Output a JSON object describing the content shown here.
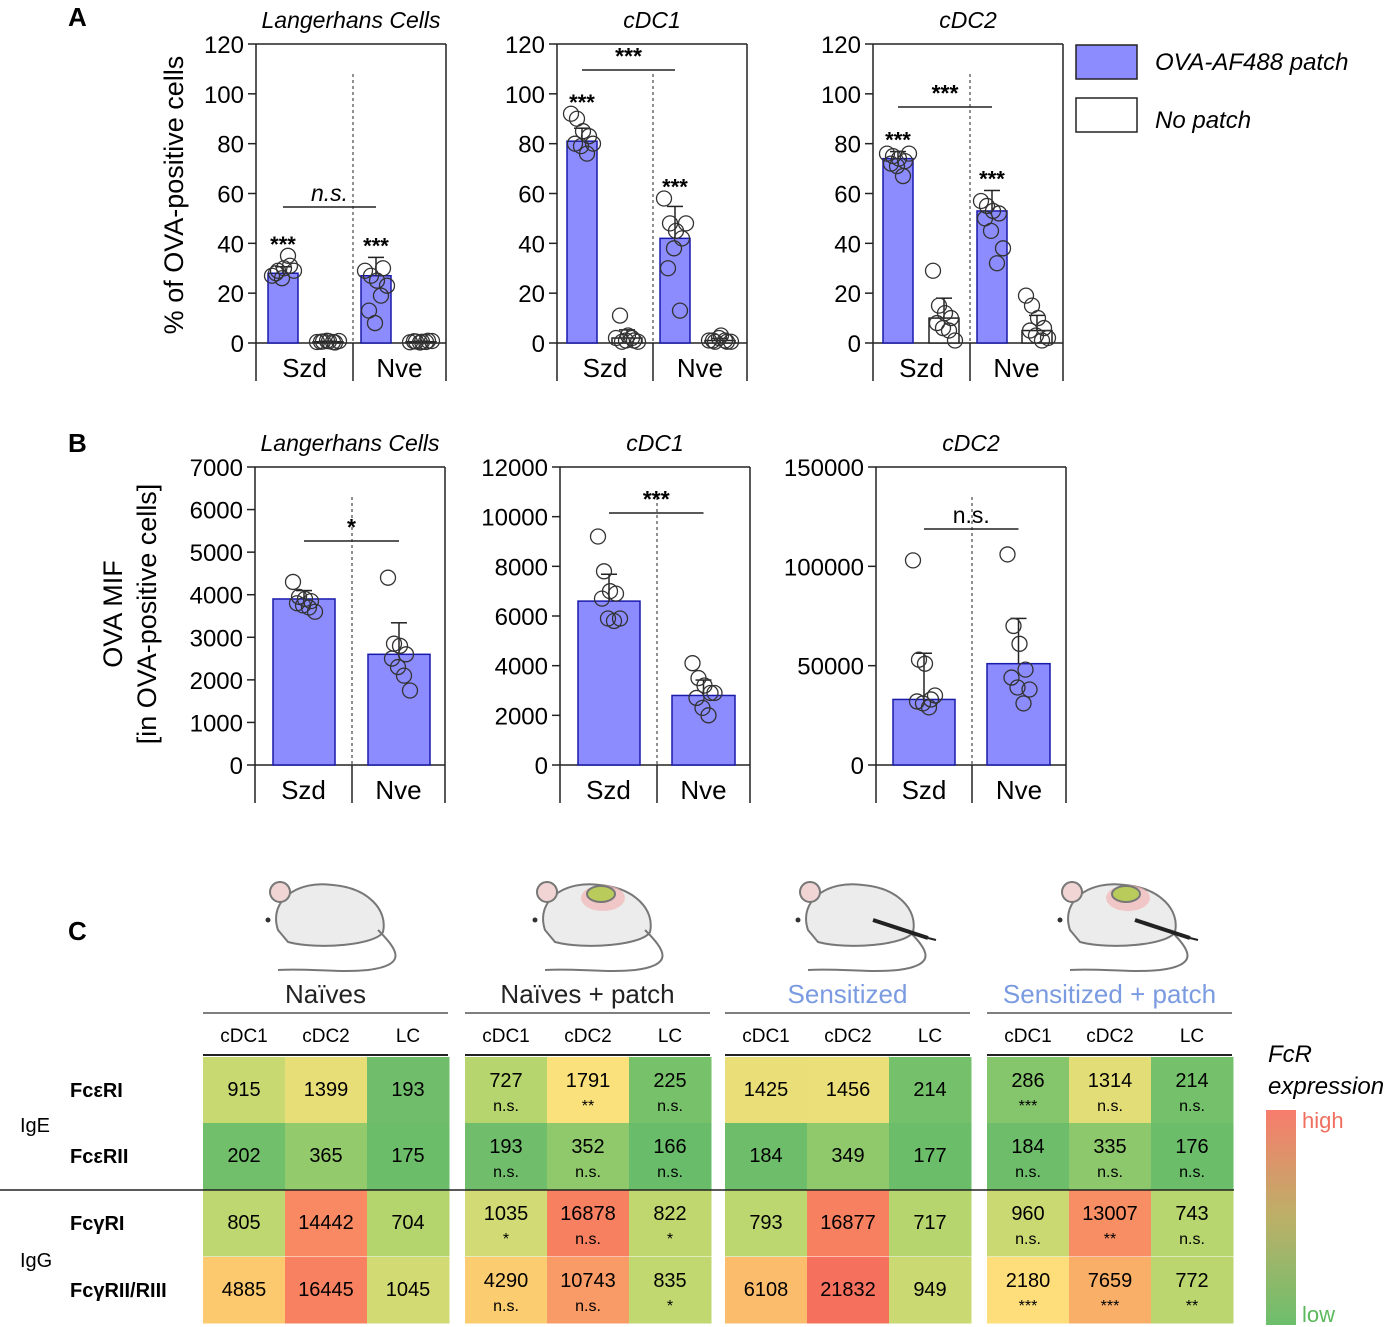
{
  "legend": {
    "patch": "OVA-AF488 patch",
    "nopatch": "No patch"
  },
  "colors": {
    "bar": "#8c8cff",
    "barStroke": "#1a1aaa"
  },
  "chart_data": [
    {
      "type": "bar",
      "panel": "A",
      "title": "Langerhans Cells",
      "ylabel": "% of OVA-positive cells",
      "ylim": [
        0,
        120
      ],
      "yticks": [
        "0",
        "20",
        "40",
        "60",
        "80",
        "100",
        "120"
      ],
      "groups": [
        "Szd",
        "Nve"
      ],
      "series": [
        {
          "name": "OVA-AF488 patch",
          "values": [
            28,
            27
          ]
        },
        {
          "name": "No patch",
          "values": [
            0.5,
            0.5
          ]
        }
      ],
      "sig": {
        "between": "n.s.",
        "bars": [
          "***",
          "",
          "***",
          ""
        ]
      },
      "points": [
        [
          27,
          29,
          30,
          31,
          28,
          26,
          35,
          29
        ],
        [
          0.4,
          0.6,
          0.7,
          0.2,
          0.5,
          0.9,
          0.4,
          0.8
        ],
        [
          29,
          27,
          25,
          30,
          13,
          8,
          19,
          23
        ],
        [
          0.3,
          0.6,
          0.5,
          0.9,
          0.7,
          0.2,
          0.4,
          0.8
        ]
      ]
    },
    {
      "type": "bar",
      "panel": "A",
      "title": "cDC1",
      "ylabel": "",
      "ylim": [
        0,
        120
      ],
      "yticks": [
        "0",
        "20",
        "40",
        "60",
        "80",
        "100",
        "120"
      ],
      "groups": [
        "Szd",
        "Nve"
      ],
      "series": [
        {
          "name": "OVA-AF488 patch",
          "values": [
            81,
            42
          ]
        },
        {
          "name": "No patch",
          "values": [
            2,
            1
          ]
        }
      ],
      "sig": {
        "between": "***",
        "bars": [
          "***",
          "",
          "***",
          ""
        ]
      },
      "points": [
        [
          92,
          90,
          85,
          83,
          80,
          79,
          76,
          80
        ],
        [
          2,
          0.5,
          3,
          1,
          11,
          1,
          2,
          0.5
        ],
        [
          58,
          48,
          45,
          42,
          30,
          38,
          13,
          48
        ],
        [
          1,
          0.5,
          3,
          0.5,
          1,
          2,
          1,
          0.5
        ]
      ]
    },
    {
      "type": "bar",
      "panel": "A",
      "title": "cDC2",
      "ylabel": "",
      "ylim": [
        0,
        120
      ],
      "yticks": [
        "0",
        "20",
        "40",
        "60",
        "80",
        "100",
        "120"
      ],
      "groups": [
        "Szd",
        "Nve"
      ],
      "series": [
        {
          "name": "OVA-AF488 patch",
          "values": [
            74,
            53
          ]
        },
        {
          "name": "No patch",
          "values": [
            10,
            5
          ]
        }
      ],
      "sig": {
        "between": "***",
        "bars": [
          "***",
          "",
          "***",
          ""
        ]
      },
      "points": [
        [
          76,
          75,
          74,
          73,
          72,
          71,
          67,
          76
        ],
        [
          29,
          15,
          12,
          10,
          8,
          6,
          5,
          1
        ],
        [
          57,
          55,
          53,
          52,
          50,
          45,
          32,
          38
        ],
        [
          19,
          15,
          10,
          6,
          5,
          3,
          1,
          2
        ]
      ]
    },
    {
      "type": "bar",
      "panel": "B",
      "title": "Langerhans Cells",
      "ylabel": "OVA MIF",
      "ylabel2": "[in OVA-positive cells]",
      "ylim": [
        0,
        7000
      ],
      "yticks": [
        "0",
        "1000",
        "2000",
        "3000",
        "4000",
        "5000",
        "6000",
        "7000"
      ],
      "groups": [
        "Szd",
        "Nve"
      ],
      "values": [
        3900,
        2600
      ],
      "sig": {
        "between": "*"
      },
      "points": [
        [
          4300,
          3950,
          3900,
          3850,
          3800,
          3750,
          3700,
          3600
        ],
        [
          4400,
          2850,
          2800,
          2600,
          2500,
          2300,
          2100,
          1750
        ]
      ]
    },
    {
      "type": "bar",
      "panel": "B",
      "title": "cDC1",
      "ylabel": "",
      "ylim": [
        0,
        12000
      ],
      "yticks": [
        "0",
        "2000",
        "4000",
        "6000",
        "8000",
        "10000",
        "12000"
      ],
      "groups": [
        "Szd",
        "Nve"
      ],
      "values": [
        6600,
        2800
      ],
      "sig": {
        "between": "***"
      },
      "points": [
        [
          9200,
          7800,
          7000,
          6900,
          6700,
          5900,
          5800,
          5900
        ],
        [
          4100,
          3500,
          3200,
          2900,
          2700,
          2300,
          2000,
          2900
        ]
      ]
    },
    {
      "type": "bar",
      "panel": "B",
      "title": "cDC2",
      "ylabel": "",
      "ylim": [
        0,
        150000
      ],
      "yticks": [
        "0",
        "50000",
        "100000",
        "150000"
      ],
      "groups": [
        "Szd",
        "Nve"
      ],
      "values": [
        33000,
        51000
      ],
      "sig": {
        "between": "n.s."
      },
      "points": [
        [
          103000,
          53000,
          51000,
          33000,
          32000,
          31000,
          29000,
          35000
        ],
        [
          106000,
          70000,
          61000,
          48000,
          44000,
          39000,
          31000,
          38000
        ]
      ]
    }
  ],
  "panelC": {
    "groups": [
      "Naïves",
      "Naïves + patch",
      "Sensitized",
      "Sensitized + patch"
    ],
    "cols": [
      "cDC1",
      "cDC2",
      "LC"
    ],
    "rows": [
      "FcεRI",
      "FcεRII",
      "FcγRI",
      "FcγRII/RIII"
    ],
    "classes": [
      "IgE",
      "IgG"
    ],
    "values": [
      [
        [
          915,
          1399,
          193
        ],
        [
          202,
          365,
          175
        ],
        [
          805,
          14442,
          704
        ],
        [
          4885,
          16445,
          1045
        ]
      ],
      [
        [
          727,
          1791,
          225
        ],
        [
          193,
          352,
          166
        ],
        [
          1035,
          16878,
          822
        ],
        [
          4290,
          10743,
          835
        ]
      ],
      [
        [
          1425,
          1456,
          214
        ],
        [
          184,
          349,
          177
        ],
        [
          793,
          16877,
          717
        ],
        [
          6108,
          21832,
          949
        ]
      ],
      [
        [
          286,
          1314,
          214
        ],
        [
          184,
          335,
          176
        ],
        [
          960,
          13007,
          743
        ],
        [
          2180,
          7659,
          772
        ]
      ]
    ],
    "sig": [
      null,
      [
        [
          "n.s.",
          "**",
          "n.s."
        ],
        [
          "n.s.",
          "n.s.",
          "n.s."
        ],
        [
          "*",
          "n.s.",
          "*"
        ],
        [
          "n.s.",
          "n.s.",
          "*"
        ]
      ],
      null,
      [
        [
          "***",
          "n.s.",
          "n.s."
        ],
        [
          "n.s.",
          "n.s.",
          "n.s."
        ],
        [
          "n.s.",
          "**",
          "n.s."
        ],
        [
          "***",
          "***",
          "**"
        ]
      ]
    ],
    "scale": {
      "title": [
        "FcR",
        "expression"
      ],
      "high": "high",
      "low": "low"
    }
  },
  "panelLabels": [
    "A",
    "B",
    "C"
  ]
}
